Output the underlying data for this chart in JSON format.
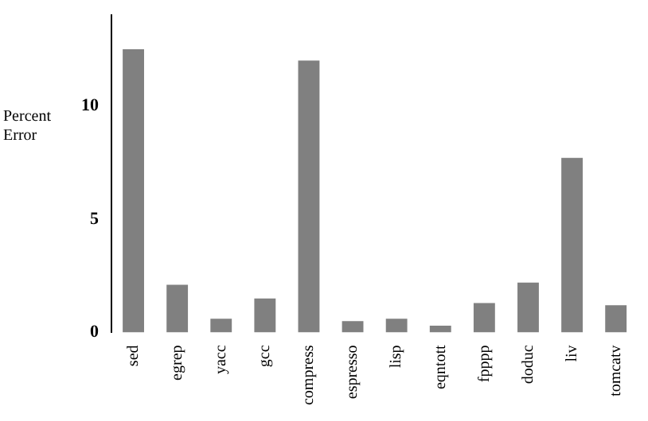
{
  "chart_data": {
    "type": "bar",
    "ylabel": "Percent Error",
    "categories": [
      "sed",
      "egrep",
      "yacc",
      "gcc",
      "compress",
      "espresso",
      "lisp",
      "eqntott",
      "fpppp",
      "doduc",
      "liv",
      "tomcatv"
    ],
    "values": [
      12.5,
      2.1,
      0.6,
      1.5,
      12.0,
      0.5,
      0.6,
      0.3,
      1.3,
      2.2,
      7.7,
      1.2
    ],
    "color": "#808080",
    "ylim": [
      0,
      14
    ],
    "yticks": [
      0,
      5,
      10
    ],
    "grid": false,
    "legend": false
  }
}
